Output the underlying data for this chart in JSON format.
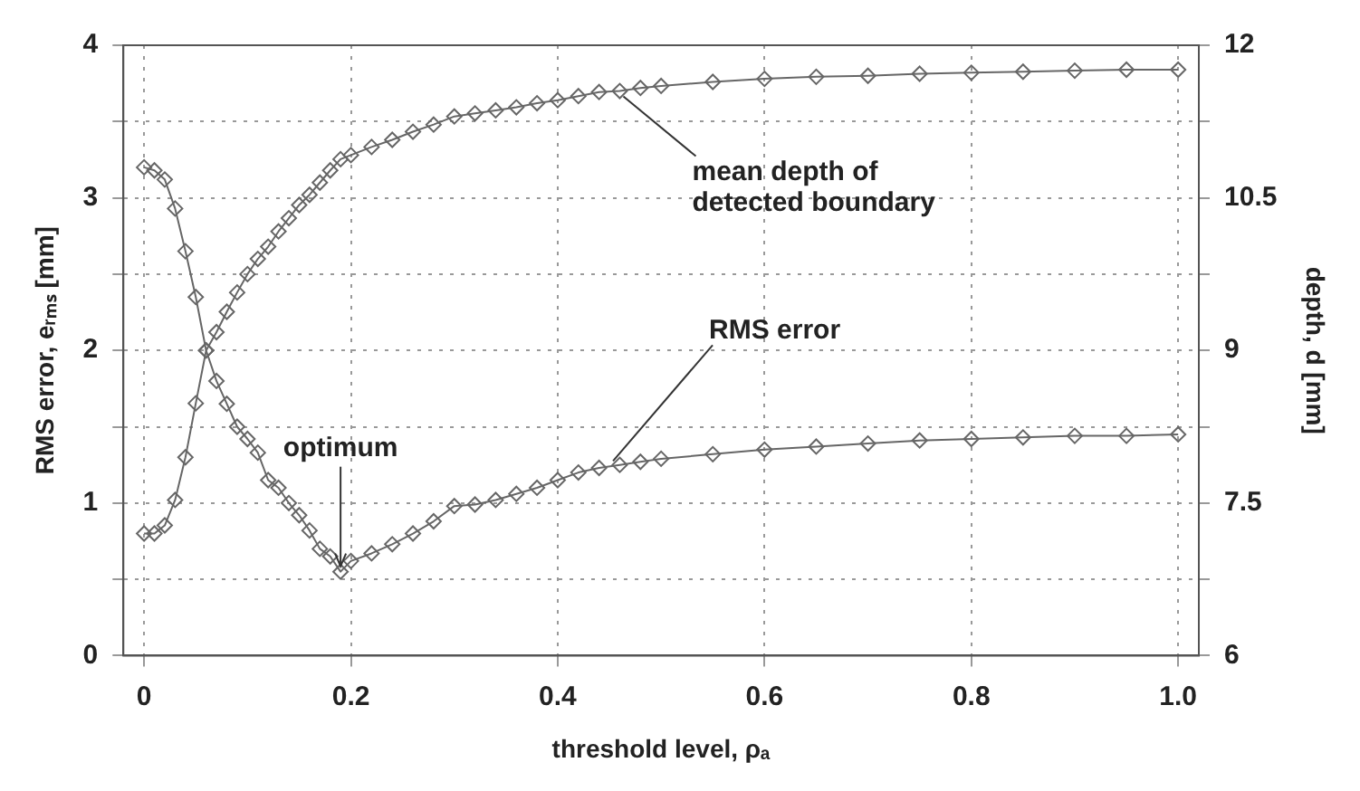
{
  "chart_data": {
    "type": "line",
    "xlabel": "threshold level, ρₐ",
    "ylabel": "RMS error, eᵣₘₛ [mm]",
    "y2label": "depth, d [mm]",
    "x": [
      0,
      0.01,
      0.02,
      0.03,
      0.04,
      0.05,
      0.06,
      0.07,
      0.08,
      0.09,
      0.1,
      0.11,
      0.12,
      0.13,
      0.14,
      0.15,
      0.16,
      0.17,
      0.18,
      0.19,
      0.2,
      0.22,
      0.24,
      0.26,
      0.28,
      0.3,
      0.32,
      0.34,
      0.36,
      0.38,
      0.4,
      0.42,
      0.44,
      0.46,
      0.48,
      0.5,
      0.55,
      0.6,
      0.65,
      0.7,
      0.75,
      0.8,
      0.85,
      0.9,
      0.95,
      1.0
    ],
    "series": [
      {
        "color": "#666666",
        "values": [
          3.2,
          3.18,
          3.12,
          2.93,
          2.65,
          2.35,
          2.0,
          1.8,
          1.65,
          1.5,
          1.42,
          1.33,
          1.15,
          1.1,
          1.0,
          0.92,
          0.82,
          0.7,
          0.65,
          0.55,
          0.62,
          0.67,
          0.73,
          0.8,
          0.88,
          0.98,
          0.99,
          1.02,
          1.06,
          1.1,
          1.15,
          1.2,
          1.23,
          1.25,
          1.27,
          1.29,
          1.32,
          1.35,
          1.37,
          1.39,
          1.41,
          1.42,
          1.43,
          1.44,
          1.44,
          1.45
        ]
      },
      {
        "color": "#666666",
        "axis": "y2",
        "values": [
          7.2,
          7.2,
          7.28,
          7.53,
          7.95,
          8.48,
          9.0,
          9.18,
          9.38,
          9.57,
          9.75,
          9.9,
          10.02,
          10.17,
          10.3,
          10.43,
          10.53,
          10.65,
          10.77,
          10.88,
          10.92,
          11.0,
          11.07,
          11.15,
          11.22,
          11.3,
          11.33,
          11.36,
          11.39,
          11.43,
          11.46,
          11.5,
          11.54,
          11.55,
          11.58,
          11.6,
          11.64,
          11.67,
          11.69,
          11.7,
          11.72,
          11.73,
          11.74,
          11.75,
          11.76,
          11.76
        ]
      }
    ],
    "xlim": [
      -0.02,
      1.02
    ],
    "xticks": [
      0,
      0.2,
      0.4,
      0.6,
      0.8,
      {
        "value": 1,
        "label": "1.0"
      }
    ],
    "ylim": [
      0,
      4
    ],
    "yticks": [
      0,
      {
        "value": 0.5,
        "label": null
      },
      1,
      {
        "value": 1.5,
        "label": null
      },
      2,
      {
        "value": 2.5,
        "label": null
      },
      3,
      {
        "value": 3.5,
        "label": null
      },
      4
    ],
    "y2lim": [
      6,
      12
    ],
    "y2ticks": [
      6,
      {
        "value": 6.75,
        "label": null
      },
      7.5,
      {
        "value": 8.25,
        "label": null
      },
      9,
      {
        "value": 9.75,
        "label": null
      },
      10.5,
      {
        "value": 11.25,
        "label": null
      },
      12
    ],
    "annotations": [
      {
        "text": "optimum",
        "x": 0.19,
        "y": 0.55
      },
      {
        "text": "RMS error",
        "x": 0.45,
        "y": 1.24
      },
      {
        "text": "mean depth of\ndetected boundary",
        "x": 0.46,
        "y": 3.7
      }
    ],
    "grid": true,
    "legend": false,
    "marker": "diamond",
    "line_style": "solid"
  }
}
